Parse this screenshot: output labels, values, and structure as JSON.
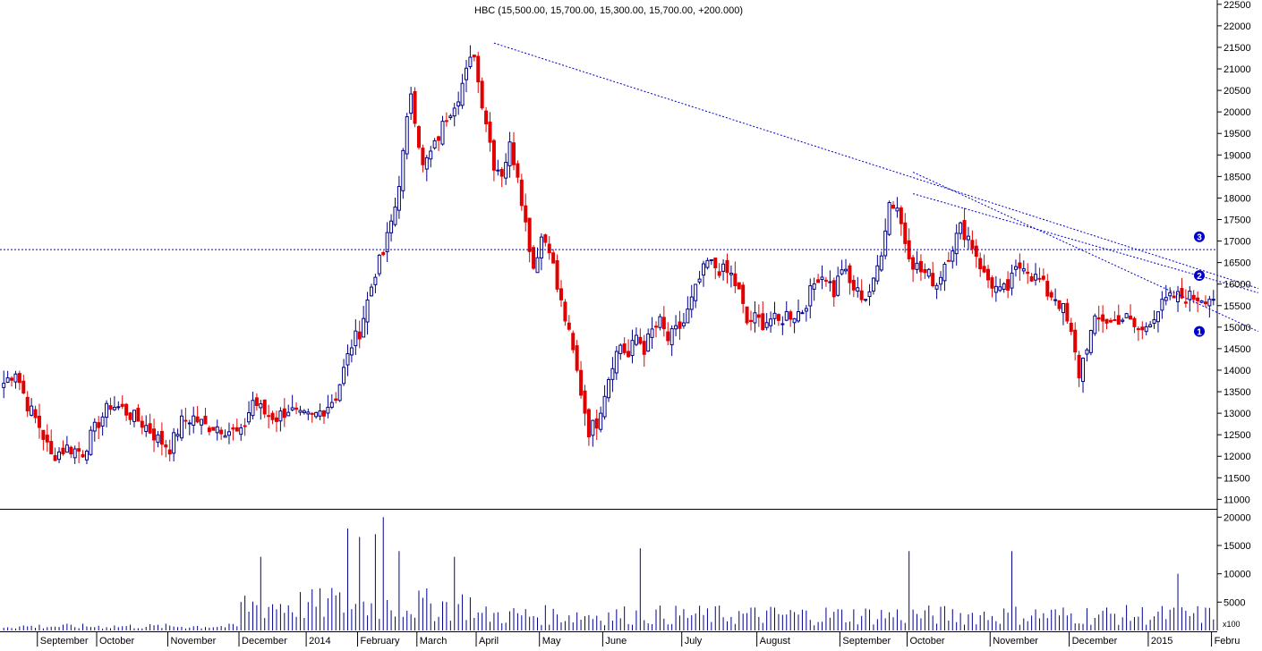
{
  "title": "HBC (15,500.00, 15,700.00, 15,300.00, 15,700.00, +200.000)",
  "volume_unit_label": "x100",
  "colors": {
    "up_candle": "#00008b",
    "down_candle": "#e00000",
    "trendline": "#0000cc",
    "axis": "#000000",
    "volume_bar": "#00008b",
    "marker_fill": "#0000cc"
  },
  "chart_data": [
    {
      "type": "candlestick",
      "name": "price",
      "ylim": [
        10800,
        22600
      ],
      "y_ticks": [
        11000,
        11500,
        12000,
        12500,
        13000,
        13500,
        14000,
        14500,
        15000,
        15500,
        16000,
        16500,
        17000,
        17500,
        18000,
        18500,
        19000,
        19500,
        20000,
        20500,
        21000,
        21500,
        22000,
        22500
      ],
      "x_months": [
        "September",
        "October",
        "November",
        "December",
        "2014",
        "February",
        "March",
        "April",
        "May",
        "June",
        "July",
        "August",
        "September",
        "October",
        "November",
        "December",
        "2015",
        "Febru"
      ],
      "month_start_bars": [
        9,
        24,
        42,
        60,
        77,
        90,
        105,
        120,
        136,
        152,
        172,
        191,
        212,
        229,
        250,
        270,
        290,
        306
      ],
      "bar_count": 307,
      "anchors": [
        [
          0,
          13700
        ],
        [
          3,
          14000
        ],
        [
          6,
          13200
        ],
        [
          9,
          12700
        ],
        [
          12,
          12000
        ],
        [
          16,
          12200
        ],
        [
          20,
          12100
        ],
        [
          24,
          12800
        ],
        [
          27,
          13200
        ],
        [
          30,
          13100
        ],
        [
          33,
          12900
        ],
        [
          36,
          12700
        ],
        [
          39,
          12400
        ],
        [
          42,
          12200
        ],
        [
          45,
          12800
        ],
        [
          48,
          12900
        ],
        [
          51,
          12700
        ],
        [
          54,
          12700
        ],
        [
          57,
          12600
        ],
        [
          60,
          12500
        ],
        [
          63,
          13300
        ],
        [
          66,
          13000
        ],
        [
          69,
          12900
        ],
        [
          72,
          13100
        ],
        [
          75,
          12900
        ],
        [
          78,
          12900
        ],
        [
          81,
          13100
        ],
        [
          84,
          13400
        ],
        [
          86,
          14000
        ],
        [
          88,
          14600
        ],
        [
          90,
          14900
        ],
        [
          92,
          15600
        ],
        [
          94,
          16300
        ],
        [
          96,
          16700
        ],
        [
          99,
          17800
        ],
        [
          101,
          19000
        ],
        [
          103,
          20500
        ],
        [
          106,
          18700
        ],
        [
          109,
          19200
        ],
        [
          112,
          19900
        ],
        [
          115,
          20400
        ],
        [
          117,
          20900
        ],
        [
          119,
          21400
        ],
        [
          120,
          20700
        ],
        [
          122,
          19800
        ],
        [
          124,
          18800
        ],
        [
          126,
          18600
        ],
        [
          128,
          19200
        ],
        [
          130,
          18600
        ],
        [
          132,
          17400
        ],
        [
          134,
          16400
        ],
        [
          136,
          17100
        ],
        [
          138,
          16900
        ],
        [
          140,
          15900
        ],
        [
          142,
          15200
        ],
        [
          144,
          14400
        ],
        [
          146,
          13500
        ],
        [
          148,
          12600
        ],
        [
          150,
          12800
        ],
        [
          152,
          13500
        ],
        [
          154,
          14200
        ],
        [
          156,
          14600
        ],
        [
          158,
          14300
        ],
        [
          160,
          14800
        ],
        [
          162,
          14500
        ],
        [
          164,
          14900
        ],
        [
          166,
          15100
        ],
        [
          168,
          14700
        ],
        [
          170,
          14900
        ],
        [
          172,
          15100
        ],
        [
          174,
          15600
        ],
        [
          176,
          16100
        ],
        [
          178,
          16500
        ],
        [
          180,
          16400
        ],
        [
          182,
          16300
        ],
        [
          184,
          16200
        ],
        [
          186,
          15800
        ],
        [
          188,
          15100
        ],
        [
          190,
          15200
        ],
        [
          192,
          15100
        ],
        [
          194,
          15200
        ],
        [
          196,
          15100
        ],
        [
          198,
          15300
        ],
        [
          200,
          15300
        ],
        [
          202,
          15400
        ],
        [
          204,
          15800
        ],
        [
          206,
          16200
        ],
        [
          208,
          16200
        ],
        [
          210,
          15800
        ],
        [
          212,
          16400
        ],
        [
          214,
          16000
        ],
        [
          216,
          15800
        ],
        [
          218,
          15700
        ],
        [
          220,
          16000
        ],
        [
          222,
          16800
        ],
        [
          224,
          17900
        ],
        [
          226,
          17800
        ],
        [
          228,
          17000
        ],
        [
          230,
          16500
        ],
        [
          232,
          16300
        ],
        [
          234,
          16200
        ],
        [
          236,
          16000
        ],
        [
          238,
          16500
        ],
        [
          240,
          16900
        ],
        [
          242,
          17300
        ],
        [
          244,
          17100
        ],
        [
          246,
          16700
        ],
        [
          248,
          16200
        ],
        [
          250,
          16000
        ],
        [
          252,
          15800
        ],
        [
          254,
          15900
        ],
        [
          256,
          16300
        ],
        [
          258,
          16500
        ],
        [
          260,
          16200
        ],
        [
          262,
          16100
        ],
        [
          264,
          15800
        ],
        [
          266,
          15700
        ],
        [
          268,
          15400
        ],
        [
          270,
          14800
        ],
        [
          272,
          13900
        ],
        [
          274,
          14600
        ],
        [
          276,
          15100
        ],
        [
          278,
          15200
        ],
        [
          280,
          15100
        ],
        [
          282,
          15200
        ],
        [
          284,
          15200
        ],
        [
          286,
          15000
        ],
        [
          288,
          14900
        ],
        [
          290,
          15200
        ],
        [
          292,
          15400
        ],
        [
          294,
          15600
        ],
        [
          296,
          15700
        ]
      ],
      "trendlines": [
        {
          "from": [
            124,
            21600
          ],
          "to": [
            306,
            15900
          ]
        },
        {
          "from": [
            230,
            18600
          ],
          "to": [
            306,
            14900
          ]
        },
        {
          "from": [
            230,
            18100
          ],
          "to": [
            306,
            15800
          ]
        }
      ],
      "horizontal_lines": [
        16800
      ],
      "markers": [
        {
          "label": "1",
          "y": 14900
        },
        {
          "label": "2",
          "y": 16200
        },
        {
          "label": "3",
          "y": 17100
        }
      ]
    },
    {
      "type": "bar",
      "name": "volume",
      "ylim": [
        0,
        21000
      ],
      "y_ticks": [
        5000,
        10000,
        15000,
        20000
      ],
      "peaks": [
        [
          65,
          13000
        ],
        [
          83,
          7500
        ],
        [
          87,
          18000
        ],
        [
          90,
          16500
        ],
        [
          94,
          17000
        ],
        [
          96,
          20000
        ],
        [
          100,
          14000
        ],
        [
          114,
          13000
        ],
        [
          161,
          14500
        ],
        [
          229,
          14000
        ],
        [
          255,
          14000
        ],
        [
          297,
          10000
        ]
      ]
    }
  ]
}
